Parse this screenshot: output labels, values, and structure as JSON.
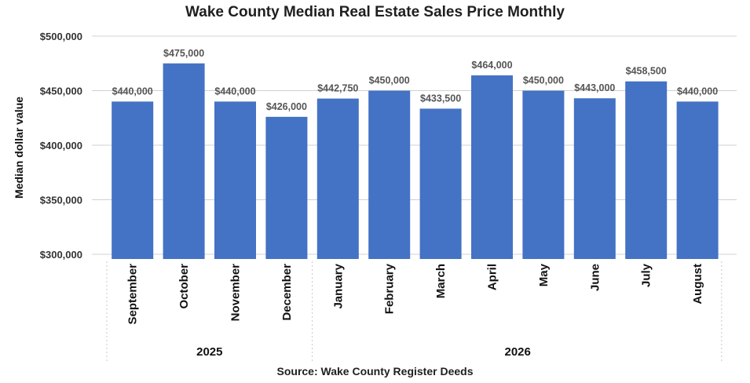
{
  "chart_data": {
    "type": "bar",
    "title": "Wake County Median Real Estate Sales Price Monthly",
    "ylabel": "Median dollar value",
    "xlabel": "",
    "source": "Source: Wake County Register Deeds",
    "categories": [
      "September",
      "October",
      "November",
      "December",
      "January",
      "February",
      "March",
      "April",
      "May",
      "June",
      "July",
      "August"
    ],
    "values": [
      440000,
      475000,
      440000,
      426000,
      442750,
      450000,
      433500,
      464000,
      450000,
      443000,
      458500,
      440000
    ],
    "value_labels": [
      "$440,000",
      "$475,000",
      "$440,000",
      "$426,000",
      "$442,750",
      "$450,000",
      "$433,500",
      "$464,000",
      "$450,000",
      "$443,000",
      "$458,500",
      "$440,000"
    ],
    "year_groups": [
      {
        "label": "2025",
        "start": 0,
        "end": 3
      },
      {
        "label": "2026",
        "start": 4,
        "end": 11
      }
    ],
    "ylim": [
      300000,
      500000
    ],
    "yticks": [
      300000,
      350000,
      400000,
      450000,
      500000
    ],
    "ytick_labels": [
      "$300,000",
      "$350,000",
      "$400,000",
      "$450,000",
      "$500,000"
    ],
    "grid": true,
    "legend": "none",
    "bar_color": "#4472c4"
  }
}
